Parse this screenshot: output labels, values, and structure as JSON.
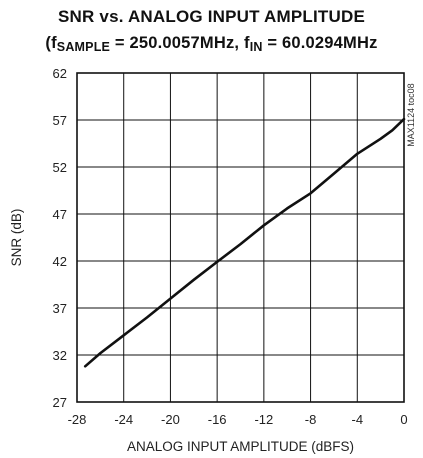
{
  "chart_data": {
    "type": "line",
    "title_line1": "SNR vs. ANALOG INPUT AMPLITUDE",
    "title_line2": {
      "prefix": "(f",
      "sub1": "SAMPLE",
      "mid": " = 250.0057MHz, f",
      "sub2": "IN",
      "suffix": " = 60.0294MHz"
    },
    "xlabel": "ANALOG INPUT AMPLITUDE (dBFS)",
    "ylabel": "SNR (dB)",
    "xlim": [
      -28,
      0
    ],
    "ylim": [
      27,
      62
    ],
    "xticks": [
      -28,
      -24,
      -20,
      -16,
      -12,
      -8,
      -4,
      0
    ],
    "yticks": [
      27,
      32,
      37,
      42,
      47,
      52,
      57,
      62
    ],
    "xtick_labels": [
      "-28",
      "-24",
      "-20",
      "-16",
      "-12",
      "-8",
      "-4",
      "0"
    ],
    "ytick_labels": [
      "27",
      "32",
      "37",
      "42",
      "47",
      "52",
      "57",
      "62"
    ],
    "grid": true,
    "watermark": "MAX1124 toc08",
    "series": [
      {
        "x": [
          -27.3,
          -26,
          -24,
          -22,
          -20,
          -18,
          -16,
          -14,
          -12,
          -10,
          -8,
          -6,
          -4,
          -2,
          -1,
          0
        ],
        "y": [
          30.8,
          32.2,
          34.1,
          36.0,
          38.0,
          40.0,
          41.9,
          43.8,
          45.8,
          47.6,
          49.2,
          51.3,
          53.4,
          55.0,
          55.9,
          57.1
        ],
        "color": "#111111"
      }
    ]
  }
}
